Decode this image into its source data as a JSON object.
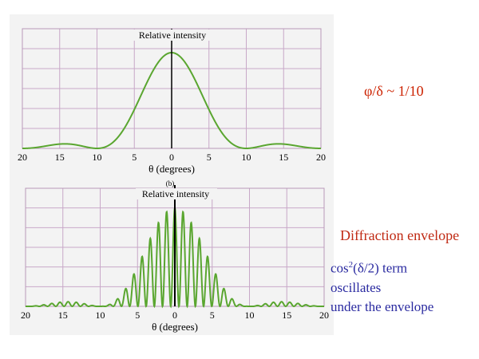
{
  "colors": {
    "curve": "#5aa630",
    "grid": "#c8a8c8",
    "axis": "#000000",
    "ratio": "#cc2200",
    "envelope": "#c02a14",
    "term": "#2a2aa0"
  },
  "annotations": {
    "ratio": "φ/δ ~ 1/10",
    "envelope": "Diffraction envelope",
    "term_prefix": "cos",
    "term_sup": "2",
    "term_suffix": "(δ/2) term",
    "term_line2": "oscillates",
    "term_line3": "under the envelope"
  },
  "chart_data": [
    {
      "type": "line",
      "title": "Relative intensity",
      "xlabel": "θ (degrees)",
      "x_tick_labels": [
        "20",
        "15",
        "10",
        "5",
        "0",
        "5",
        "10",
        "15",
        "20"
      ],
      "xlim": [
        -20,
        20
      ],
      "ylim": [
        0,
        1.25
      ],
      "grid": true,
      "series": [
        {
          "model": "single-slit",
          "first_zero_deg": 10,
          "peak": 1.0
        }
      ]
    },
    {
      "type": "line",
      "title": "Relative intensity",
      "marker": "(b)",
      "xlabel": "θ (degrees)",
      "x_tick_labels": [
        "20",
        "15",
        "10",
        "5",
        "0",
        "5",
        "10",
        "15",
        "20"
      ],
      "xlim": [
        -20,
        20
      ],
      "ylim": [
        0,
        1.2
      ],
      "grid": true,
      "series": [
        {
          "model": "double-slit",
          "envelope_first_zero_deg": 10,
          "fringe_spacing_deg": 1.1,
          "peak": 1.0
        }
      ]
    }
  ]
}
